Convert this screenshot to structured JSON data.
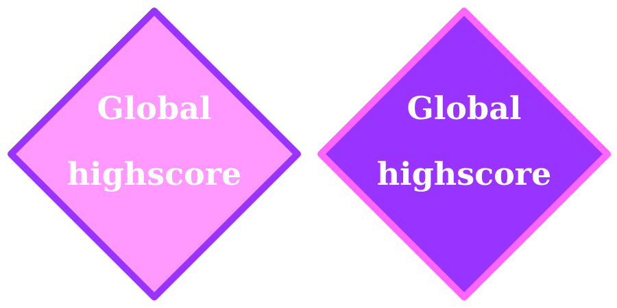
{
  "buttons": [
    {
      "line1": "Global",
      "line2": "highscore",
      "fill_color": "#ff99ff",
      "border_color": "#9933ff",
      "text_color": "#ffffff",
      "state": "normal"
    },
    {
      "line1": "Global",
      "line2": "highscore",
      "fill_color": "#9933ff",
      "border_color": "#ff66ff",
      "text_color": "#ffffff",
      "state": "hover"
    }
  ]
}
